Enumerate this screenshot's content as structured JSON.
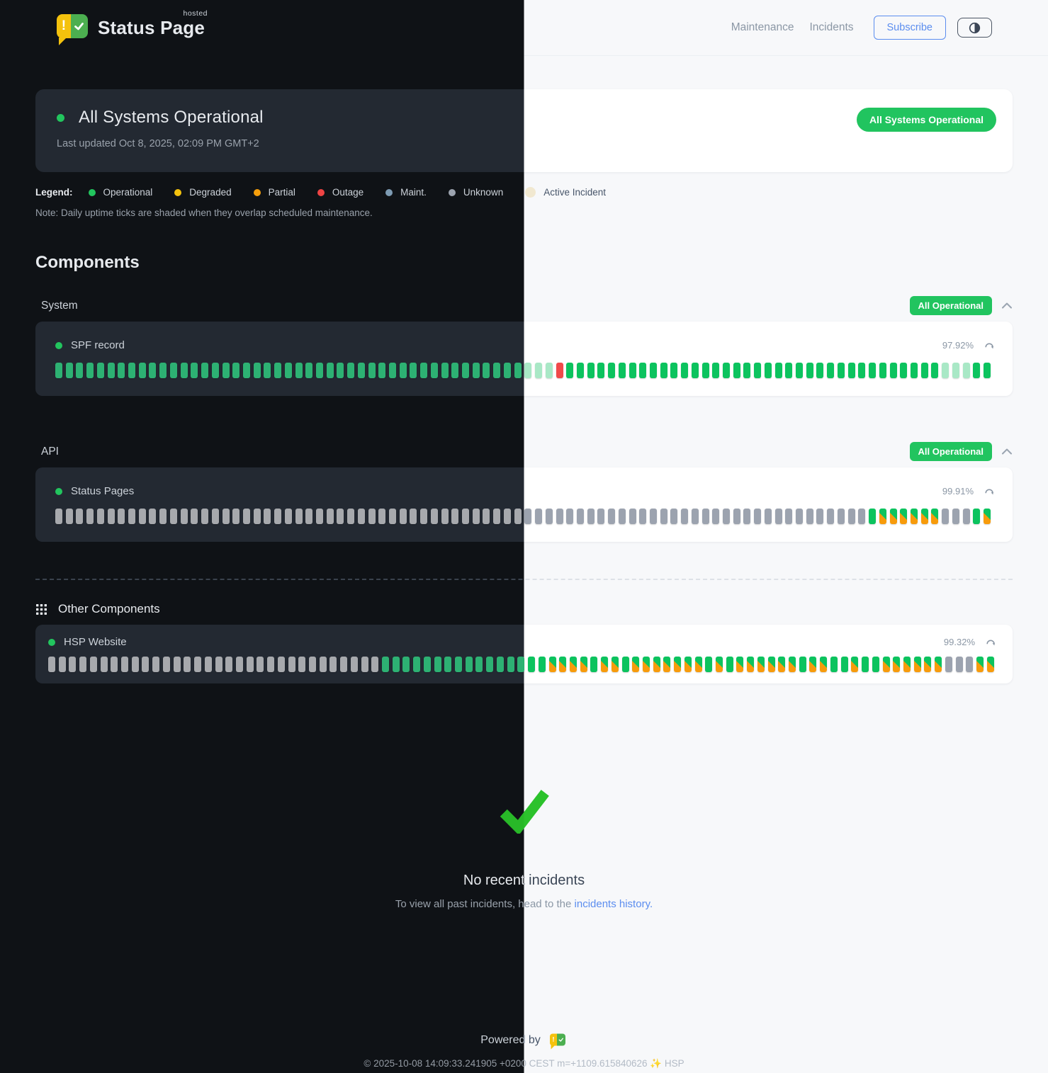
{
  "header": {
    "brand": {
      "name": "Status Page",
      "superscript": "hosted"
    },
    "nav": [
      {
        "label": "Maintenance"
      },
      {
        "label": "Incidents"
      }
    ],
    "subscribe_label": "Subscribe",
    "theme_toggle_icon": "contrast-half-circle"
  },
  "hero": {
    "title": "All Systems Operational",
    "last_updated": "Last updated Oct 8, 2025, 02:09 PM GMT+2",
    "badge": "All Systems Operational"
  },
  "legend": {
    "label": "Legend:",
    "items": [
      {
        "label": "Operational",
        "color": "#22c55e"
      },
      {
        "label": "Degraded",
        "color": "#f4c20d"
      },
      {
        "label": "Partial",
        "color": "#f59e0b"
      },
      {
        "label": "Outage",
        "color": "#ef4444"
      },
      {
        "label": "Maint.",
        "color": "#7d9bb3"
      },
      {
        "label": "Unknown",
        "color": "#9ca3af"
      },
      {
        "label": "Active Incident",
        "color": "#272112"
      }
    ],
    "note": "Note: Daily uptime ticks are shaded when they overlap scheduled maintenance."
  },
  "components": {
    "heading": "Components",
    "tick_codes": {
      "o": "operational",
      "m": "maintenance-shaded",
      "x": "outage",
      "u": "unknown",
      "p": "partial"
    },
    "groups": [
      {
        "name": "System",
        "badge": "All Operational",
        "components": [
          {
            "name": "SPF record",
            "uptime": "97.92%",
            "ticks": "ooooooooooooooooooooooooooooooooooooooooooooommmxoooooooooooooooooooooooooooooooooooommmoo"
          }
        ]
      },
      {
        "name": "API",
        "badge": "All Operational",
        "components": [
          {
            "name": "Status Pages",
            "uptime": "99.91%",
            "ticks": "uuuuuuuuuuuuuuuuuuuuuuuuuuuuuuuuuuuuuuuuuuuuuuuuuuuuuuuuuuuuuuuuuuuuuuuuuuuuuuoppppppuuuop"
          }
        ]
      }
    ],
    "other": {
      "heading": "Other Components",
      "components": [
        {
          "name": "HSP Website",
          "uptime": "99.32%",
          "ticks": "uuuuuuuuuuuuuuuuuuuuuuuuuuuuuuuuooooooooooooooooppppoppopppppppopoppppppoppoopooppppppuuupp"
        }
      ]
    }
  },
  "incidents": {
    "title": "No recent incidents",
    "subtext_prefix": "To view all past incidents, head to the ",
    "link_label": "incidents history."
  },
  "footer": {
    "powered_by": "Powered by",
    "copyright": "© 2025-10-08 14:09:33.241905 +0200 CEST m=+1109.615840626 ✨ HSP"
  },
  "colors": {
    "operational": "#22c55e",
    "degraded": "#f4c20d",
    "partial": "#f59e0b",
    "outage": "#ef4444",
    "maintenance": "#7d9bb3",
    "unknown": "#9ca3af",
    "badge_green": "#21c45f",
    "link_blue": "#5b8def"
  }
}
